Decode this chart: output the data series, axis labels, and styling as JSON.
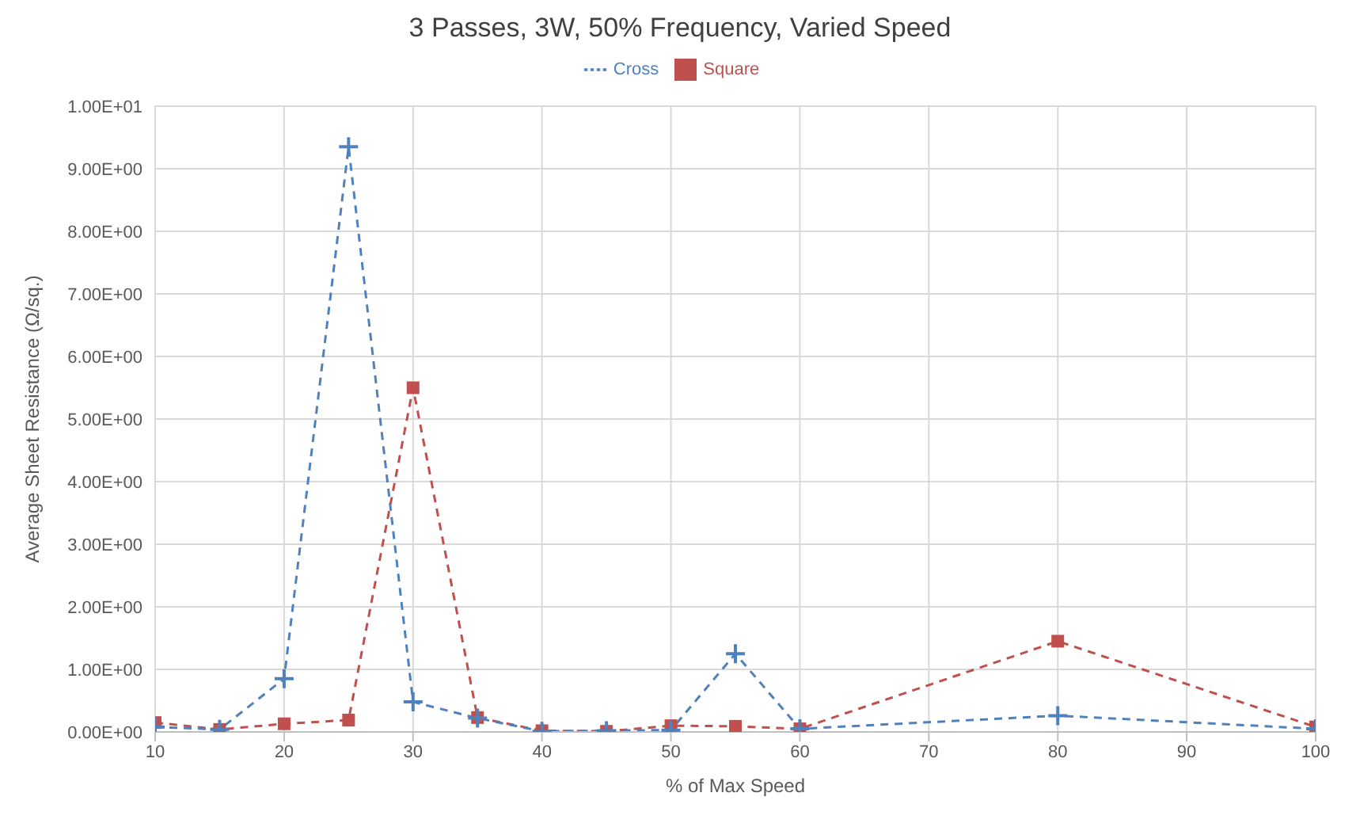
{
  "chart_data": {
    "type": "line",
    "title": "3 Passes, 3W, 50% Frequency, Varied Speed",
    "xlabel": "% of Max Speed",
    "ylabel": "Average Sheet Resistance (Ω/sq.)",
    "x": [
      10,
      15,
      20,
      25,
      30,
      35,
      40,
      45,
      50,
      55,
      60,
      80,
      100
    ],
    "series": [
      {
        "name": "Square",
        "color": "#c0504d",
        "marker": "square",
        "line_style": "dashed",
        "values": [
          0.15,
          0.04,
          0.13,
          0.19,
          5.5,
          0.23,
          0.02,
          0.01,
          0.1,
          0.09,
          0.05,
          1.45,
          0.08
        ]
      },
      {
        "name": "Cross",
        "color": "#4f81bd",
        "marker": "cross",
        "line_style": "dashed",
        "values": [
          0.08,
          0.04,
          0.85,
          9.35,
          0.48,
          0.22,
          0.01,
          0.02,
          0.03,
          1.25,
          0.05,
          0.26,
          0.05
        ]
      }
    ],
    "xlim": [
      10,
      100
    ],
    "xticks": [
      10,
      20,
      30,
      40,
      50,
      60,
      70,
      80,
      90,
      100
    ],
    "ylim": [
      0,
      10
    ],
    "yticks": [
      {
        "value": 0,
        "label": "0.00E+00"
      },
      {
        "value": 1,
        "label": "1.00E+00"
      },
      {
        "value": 2,
        "label": "2.00E+00"
      },
      {
        "value": 3,
        "label": "3.00E+00"
      },
      {
        "value": 4,
        "label": "4.00E+00"
      },
      {
        "value": 5,
        "label": "5.00E+00"
      },
      {
        "value": 6,
        "label": "6.00E+00"
      },
      {
        "value": 7,
        "label": "7.00E+00"
      },
      {
        "value": 8,
        "label": "8.00E+00"
      },
      {
        "value": 9,
        "label": "9.00E+00"
      },
      {
        "value": 10,
        "label": "1.00E+01"
      }
    ],
    "grid": true,
    "legend": "top"
  }
}
